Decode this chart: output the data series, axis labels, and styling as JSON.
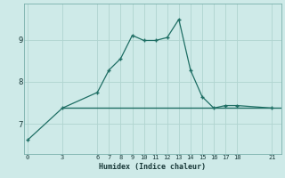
{
  "xlabel": "Humidex (Indice chaleur)",
  "ylabel": "",
  "bg_color": "#ceeae8",
  "line_color": "#1e6e64",
  "grid_color": "#b0d4d0",
  "xticks": [
    0,
    3,
    6,
    7,
    8,
    9,
    10,
    11,
    12,
    13,
    14,
    15,
    16,
    17,
    18,
    21
  ],
  "yticks": [
    7,
    8,
    9
  ],
  "xlim": [
    -0.3,
    21.8
  ],
  "ylim": [
    6.3,
    9.85
  ],
  "curve_x": [
    0,
    3,
    6,
    7,
    8,
    9,
    10,
    11,
    12,
    13,
    14,
    15,
    16,
    17,
    18,
    21
  ],
  "curve_y": [
    6.62,
    7.38,
    7.75,
    8.28,
    8.55,
    9.1,
    8.98,
    8.98,
    9.05,
    9.48,
    8.28,
    7.65,
    7.38,
    7.44,
    7.44,
    7.38
  ],
  "hline_y": 7.38,
  "hline_x_start": 3.0,
  "hline_x_end": 21.8
}
